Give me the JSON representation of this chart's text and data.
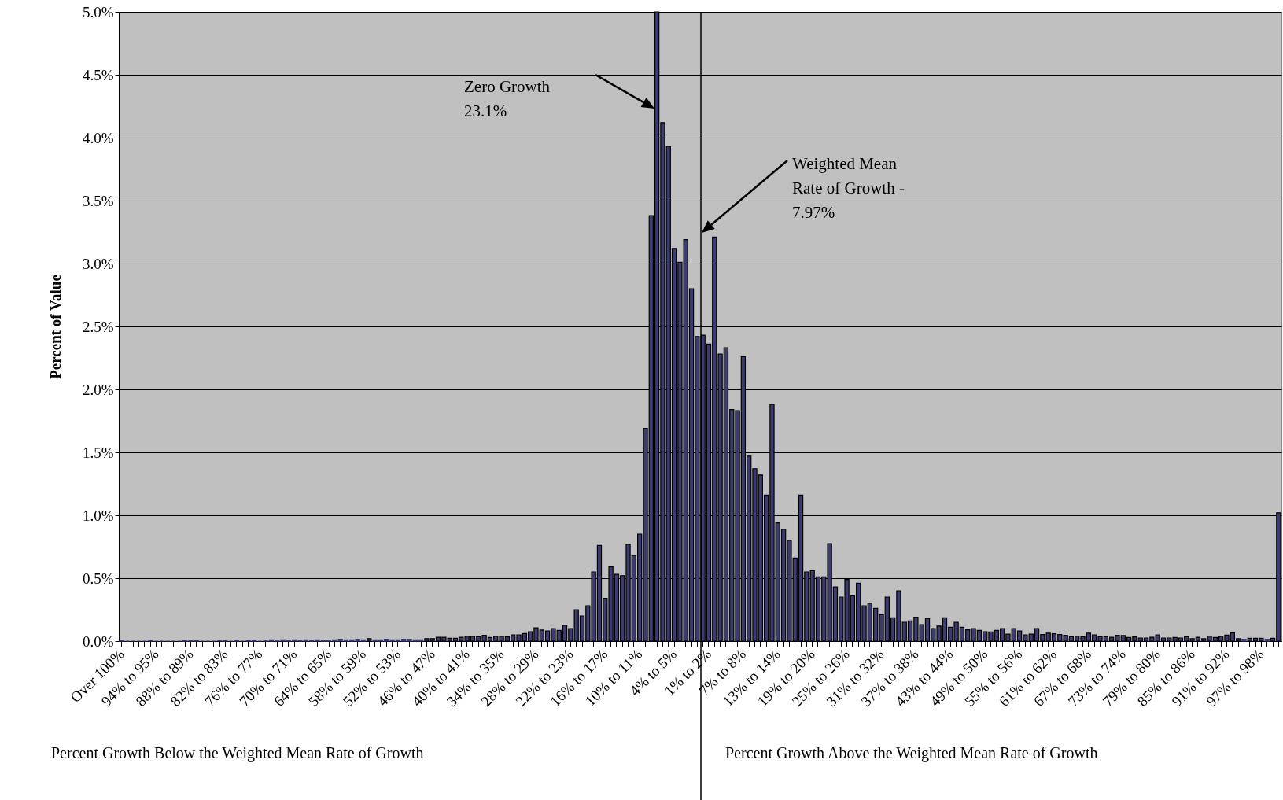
{
  "chart_data": {
    "type": "bar",
    "ylabel": "Percent of Value",
    "color": "#3c3c70",
    "grid": "y",
    "categories": [
      "Over 100%",
      null,
      null,
      null,
      null,
      null,
      "94% to 95%",
      null,
      null,
      null,
      null,
      null,
      "88% to 89%",
      null,
      null,
      null,
      null,
      null,
      "82% to 83%",
      null,
      null,
      null,
      null,
      null,
      "76% to 77%",
      null,
      null,
      null,
      null,
      null,
      "70% to 71%",
      null,
      null,
      null,
      null,
      null,
      "64% to 65%",
      null,
      null,
      null,
      null,
      null,
      "58% to 59%",
      null,
      null,
      null,
      null,
      null,
      "52% to 53%",
      null,
      null,
      null,
      null,
      null,
      "46% to 47%",
      null,
      null,
      null,
      null,
      null,
      "40% to 41%",
      null,
      null,
      null,
      null,
      null,
      "34% to 35%",
      null,
      null,
      null,
      null,
      null,
      "28% to 29%",
      null,
      null,
      null,
      null,
      null,
      "22% to 23%",
      null,
      null,
      null,
      null,
      null,
      "16% to 17%",
      null,
      null,
      null,
      null,
      null,
      "10% to 11%",
      null,
      null,
      null,
      null,
      null,
      "4% to 5%",
      null,
      null,
      null,
      null,
      null,
      "1% to 2%",
      null,
      null,
      null,
      null,
      null,
      "7% to 8%",
      null,
      null,
      null,
      null,
      null,
      "13% to 14%",
      null,
      null,
      null,
      null,
      null,
      "19% to 20%",
      null,
      null,
      null,
      null,
      null,
      "25% to 26%",
      null,
      null,
      null,
      null,
      null,
      "31% to 32%",
      null,
      null,
      null,
      null,
      null,
      "37% to 38%",
      null,
      null,
      null,
      null,
      null,
      "43% to 44%",
      null,
      null,
      null,
      null,
      null,
      "49% to 50%",
      null,
      null,
      null,
      null,
      null,
      "55% to 56%",
      null,
      null,
      null,
      null,
      null,
      "61% to 62%",
      null,
      null,
      null,
      null,
      null,
      "67% to 68%",
      null,
      null,
      null,
      null,
      null,
      "73% to 74%",
      null,
      null,
      null,
      null,
      null,
      "79% to 80%",
      null,
      null,
      null,
      null,
      null,
      "85% to 86%",
      null,
      null,
      null,
      null,
      null,
      "91% to 92%",
      null,
      null,
      null,
      null,
      null,
      "97% to 98%",
      null,
      null,
      null
    ],
    "values": [
      0.005,
      0,
      0,
      0,
      0,
      0.005,
      0,
      0,
      0,
      0,
      0,
      0.005,
      0.005,
      0.005,
      0,
      0,
      0,
      0.005,
      0.005,
      0,
      0.005,
      0,
      0.005,
      0.005,
      0,
      0.005,
      0.01,
      0.005,
      0.01,
      0.005,
      0.01,
      0.005,
      0.01,
      0.005,
      0.01,
      0.005,
      0.005,
      0.01,
      0.015,
      0.01,
      0.01,
      0.015,
      0.01,
      0.02,
      0.01,
      0.01,
      0.015,
      0.01,
      0.01,
      0.015,
      0.015,
      0.01,
      0.01,
      0.02,
      0.02,
      0.03,
      0.03,
      0.023,
      0.023,
      0.031,
      0.04,
      0.038,
      0.035,
      0.046,
      0.029,
      0.038,
      0.038,
      0.033,
      0.05,
      0.05,
      0.06,
      0.075,
      0.106,
      0.088,
      0.081,
      0.1,
      0.085,
      0.125,
      0.1,
      0.25,
      0.2,
      0.28,
      0.55,
      0.76,
      0.34,
      0.59,
      0.53,
      0.52,
      0.77,
      0.68,
      0.85,
      1.69,
      3.38,
      5.0,
      4.12,
      3.93,
      3.12,
      3.01,
      3.19,
      2.8,
      2.42,
      2.43,
      2.36,
      3.21,
      2.28,
      2.33,
      1.84,
      1.83,
      2.26,
      1.47,
      1.37,
      1.32,
      1.16,
      1.88,
      0.94,
      0.89,
      0.8,
      0.66,
      1.16,
      0.55,
      0.56,
      0.51,
      0.51,
      0.775,
      0.43,
      0.35,
      0.49,
      0.36,
      0.46,
      0.28,
      0.3,
      0.26,
      0.21,
      0.35,
      0.185,
      0.4,
      0.15,
      0.16,
      0.19,
      0.13,
      0.18,
      0.1,
      0.12,
      0.185,
      0.11,
      0.15,
      0.11,
      0.09,
      0.1,
      0.085,
      0.075,
      0.073,
      0.085,
      0.1,
      0.056,
      0.1,
      0.08,
      0.05,
      0.056,
      0.1,
      0.052,
      0.063,
      0.058,
      0.052,
      0.046,
      0.035,
      0.04,
      0.033,
      0.063,
      0.05,
      0.035,
      0.035,
      0.031,
      0.046,
      0.044,
      0.029,
      0.033,
      0.025,
      0.025,
      0.031,
      0.05,
      0.025,
      0.025,
      0.029,
      0.025,
      0.035,
      0.019,
      0.031,
      0.019,
      0.04,
      0.029,
      0.038,
      0.048,
      0.065,
      0.019,
      0.015,
      0.023,
      0.023,
      0.023,
      0.015,
      0.023,
      1.02
    ],
    "ylim": [
      0,
      5
    ],
    "yticks": [
      {
        "value": 0,
        "label": "0.0%"
      },
      {
        "value": 0.5,
        "label": "0.5%"
      },
      {
        "value": 1,
        "label": "1.0%"
      },
      {
        "value": 1.5,
        "label": "1.5%"
      },
      {
        "value": 2,
        "label": "2.0%"
      },
      {
        "value": 2.5,
        "label": "2.5%"
      },
      {
        "value": 3,
        "label": "3.0%"
      },
      {
        "value": 3.5,
        "label": "3.5%"
      },
      {
        "value": 4,
        "label": "4.0%"
      },
      {
        "value": 4.5,
        "label": "4.5%"
      },
      {
        "value": 5,
        "label": "5.0%"
      }
    ],
    "annotations": [
      "Zero Growth\n23.1%",
      "Weighted Mean\nRate of Growth -\n7.97%",
      "Percent Growth Below the Weighted Mean Rate of Growth",
      "Percent Growth Above the Weighted Mean Rate of Growth"
    ]
  }
}
